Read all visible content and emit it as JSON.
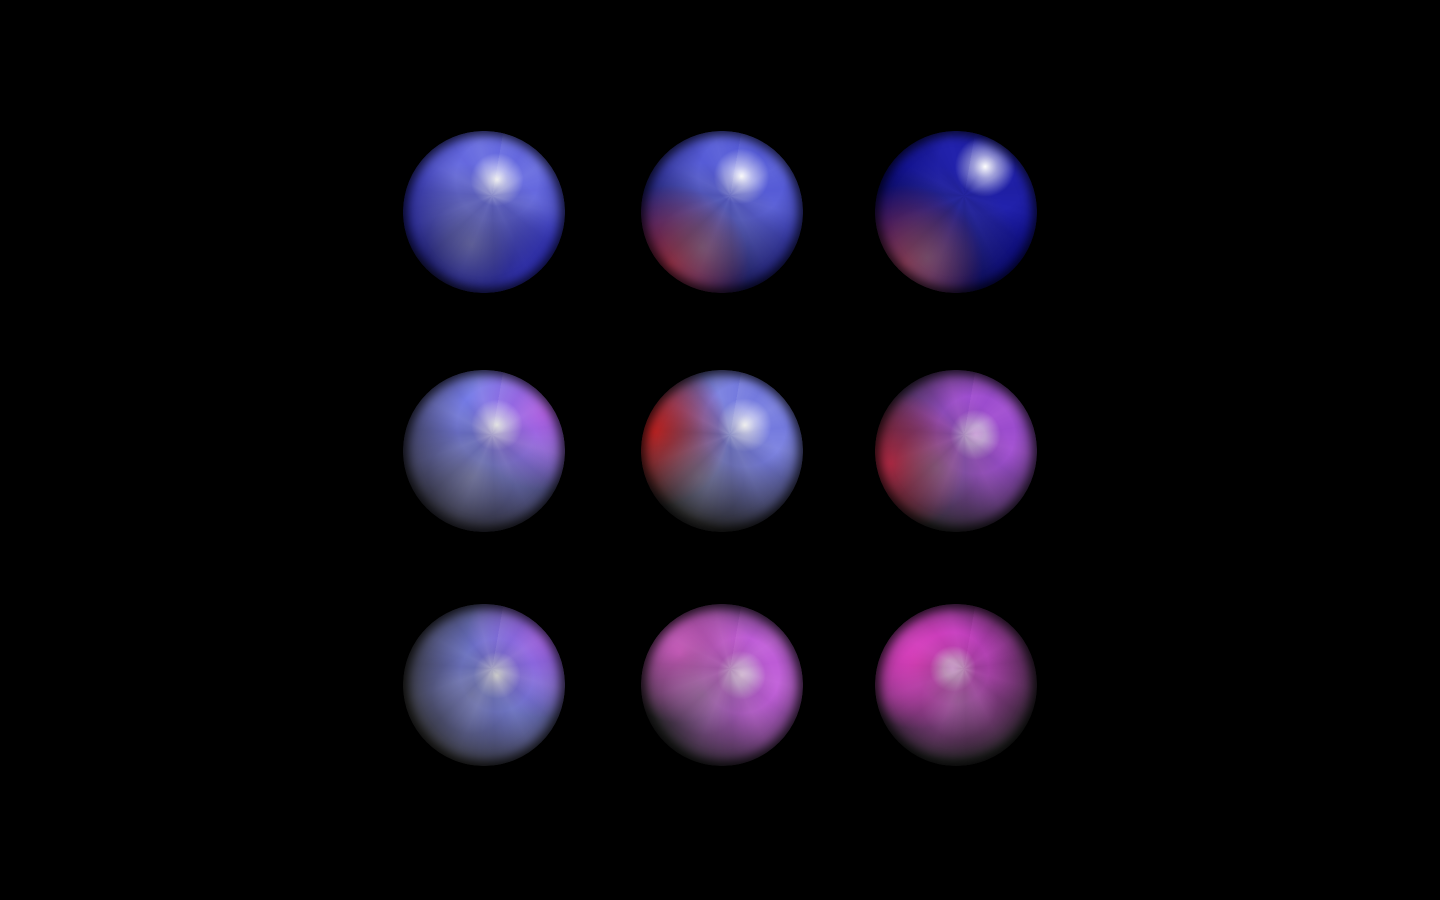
{
  "scene": {
    "background": "#000000",
    "rows": 3,
    "columns": 3,
    "spheres": [
      {
        "row": 1,
        "col": 1,
        "base": "#6a6ee0",
        "shadow": "#1a1a8a",
        "tint": "#2a2ab8",
        "highlight": "#ffffff"
      },
      {
        "row": 1,
        "col": 2,
        "base": "#5a60d8",
        "shadow": "#101060",
        "tint": "#b02040",
        "highlight": "#ffffff"
      },
      {
        "row": 1,
        "col": 3,
        "base": "#2020a8",
        "shadow": "#000060",
        "tint": "#a02050",
        "highlight": "#ffffff"
      },
      {
        "row": 2,
        "col": 1,
        "base": "#7a80e8",
        "shadow": "#303040",
        "tint": "#b060e0",
        "highlight": "#ffffff"
      },
      {
        "row": 2,
        "col": 2,
        "base": "#7a80e0",
        "shadow": "#202020",
        "tint": "#d02020",
        "highlight": "#ffffff"
      },
      {
        "row": 2,
        "col": 3,
        "base": "#a050d0",
        "shadow": "#202020",
        "tint": "#c02040",
        "highlight": "#f0c0ff"
      },
      {
        "row": 3,
        "col": 1,
        "base": "#7a82e8",
        "shadow": "#303030",
        "tint": "#a060e0",
        "highlight": "#ffffff"
      },
      {
        "row": 3,
        "col": 2,
        "base": "#c060d8",
        "shadow": "#202020",
        "tint": "#e060d0",
        "highlight": "#ffe0ff"
      },
      {
        "row": 3,
        "col": 3,
        "base": "#c040c0",
        "shadow": "#202020",
        "tint": "#e040c0",
        "highlight": "#ffc0ff"
      }
    ]
  }
}
